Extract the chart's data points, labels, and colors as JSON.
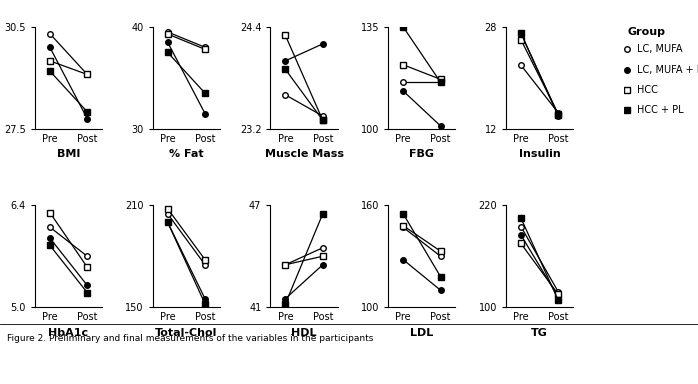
{
  "panels": [
    {
      "title": "BMI",
      "ylim": [
        27.5,
        30.5
      ],
      "yticks": [
        27.5,
        30.5
      ],
      "series": [
        {
          "marker": "o",
          "filled": false,
          "pre": 30.3,
          "post": 29.1
        },
        {
          "marker": "o",
          "filled": true,
          "pre": 29.9,
          "post": 27.8
        },
        {
          "marker": "s",
          "filled": false,
          "pre": 29.5,
          "post": 29.1
        },
        {
          "marker": "s",
          "filled": true,
          "pre": 29.2,
          "post": 28.0
        }
      ]
    },
    {
      "title": "% Fat",
      "ylim": [
        30,
        40
      ],
      "yticks": [
        30,
        40
      ],
      "series": [
        {
          "marker": "o",
          "filled": false,
          "pre": 39.5,
          "post": 38.0
        },
        {
          "marker": "o",
          "filled": true,
          "pre": 38.5,
          "post": 31.5
        },
        {
          "marker": "s",
          "filled": false,
          "pre": 39.3,
          "post": 37.8
        },
        {
          "marker": "s",
          "filled": true,
          "pre": 37.5,
          "post": 33.5
        }
      ]
    },
    {
      "title": "Muscle Mass",
      "ylim": [
        23.2,
        24.4
      ],
      "yticks": [
        23.2,
        24.4
      ],
      "series": [
        {
          "marker": "o",
          "filled": false,
          "pre": 23.6,
          "post": 23.35
        },
        {
          "marker": "o",
          "filled": true,
          "pre": 24.0,
          "post": 24.2
        },
        {
          "marker": "s",
          "filled": false,
          "pre": 24.3,
          "post": 23.3
        },
        {
          "marker": "s",
          "filled": true,
          "pre": 23.9,
          "post": 23.3
        }
      ]
    },
    {
      "title": "FBG",
      "ylim": [
        100,
        135
      ],
      "yticks": [
        100,
        135
      ],
      "series": [
        {
          "marker": "o",
          "filled": false,
          "pre": 116,
          "post": 116
        },
        {
          "marker": "o",
          "filled": true,
          "pre": 113,
          "post": 101
        },
        {
          "marker": "s",
          "filled": false,
          "pre": 122,
          "post": 117
        },
        {
          "marker": "s",
          "filled": true,
          "pre": 135,
          "post": 116
        }
      ]
    },
    {
      "title": "Insulin",
      "ylim": [
        12,
        28
      ],
      "yticks": [
        12,
        28
      ],
      "series": [
        {
          "marker": "o",
          "filled": false,
          "pre": 22,
          "post": 14.5
        },
        {
          "marker": "o",
          "filled": true,
          "pre": 27,
          "post": 14.0
        },
        {
          "marker": "s",
          "filled": false,
          "pre": 26,
          "post": 14.3
        },
        {
          "marker": "s",
          "filled": true,
          "pre": 27,
          "post": 14.2
        }
      ]
    },
    {
      "title": "HbA1c",
      "ylim": [
        5.0,
        6.4
      ],
      "yticks": [
        5.0,
        6.4
      ],
      "series": [
        {
          "marker": "o",
          "filled": false,
          "pre": 6.1,
          "post": 5.7
        },
        {
          "marker": "o",
          "filled": true,
          "pre": 5.95,
          "post": 5.3
        },
        {
          "marker": "s",
          "filled": false,
          "pre": 6.3,
          "post": 5.55
        },
        {
          "marker": "s",
          "filled": true,
          "pre": 5.85,
          "post": 5.2
        }
      ]
    },
    {
      "title": "Total-Chol",
      "ylim": [
        150,
        210
      ],
      "yticks": [
        150,
        210
      ],
      "series": [
        {
          "marker": "o",
          "filled": false,
          "pre": 205,
          "post": 175
        },
        {
          "marker": "o",
          "filled": true,
          "pre": 200,
          "post": 155
        },
        {
          "marker": "s",
          "filled": false,
          "pre": 208,
          "post": 178
        },
        {
          "marker": "s",
          "filled": true,
          "pre": 200,
          "post": 152
        }
      ]
    },
    {
      "title": "HDL",
      "ylim": [
        41,
        47
      ],
      "yticks": [
        41,
        47
      ],
      "series": [
        {
          "marker": "o",
          "filled": false,
          "pre": 43.5,
          "post": 44.5
        },
        {
          "marker": "o",
          "filled": true,
          "pre": 41.5,
          "post": 43.5
        },
        {
          "marker": "s",
          "filled": false,
          "pre": 43.5,
          "post": 44.0
        },
        {
          "marker": "s",
          "filled": true,
          "pre": 41.2,
          "post": 46.5
        }
      ]
    },
    {
      "title": "LDL",
      "ylim": [
        100,
        160
      ],
      "yticks": [
        100,
        160
      ],
      "series": [
        {
          "marker": "o",
          "filled": false,
          "pre": 147,
          "post": 130
        },
        {
          "marker": "o",
          "filled": true,
          "pre": 128,
          "post": 110
        },
        {
          "marker": "s",
          "filled": false,
          "pre": 148,
          "post": 133
        },
        {
          "marker": "s",
          "filled": true,
          "pre": 155,
          "post": 118
        }
      ]
    },
    {
      "title": "TG",
      "ylim": [
        100,
        220
      ],
      "yticks": [
        100,
        220
      ],
      "series": [
        {
          "marker": "o",
          "filled": false,
          "pre": 195,
          "post": 118
        },
        {
          "marker": "o",
          "filled": true,
          "pre": 185,
          "post": 112
        },
        {
          "marker": "s",
          "filled": false,
          "pre": 175,
          "post": 115
        },
        {
          "marker": "s",
          "filled": true,
          "pre": 205,
          "post": 108
        }
      ]
    }
  ],
  "legend_title": "Group",
  "legend_entries": [
    {
      "label": "LC, MUFA",
      "marker": "o",
      "filled": false
    },
    {
      "label": "LC, MUFA + PL",
      "marker": "o",
      "filled": true
    },
    {
      "label": "HCC",
      "marker": "s",
      "filled": false
    },
    {
      "label": "HCC + PL",
      "marker": "s",
      "filled": true
    }
  ],
  "caption": "Figure 2. Preliminary and final measurements of the variables in the participants"
}
